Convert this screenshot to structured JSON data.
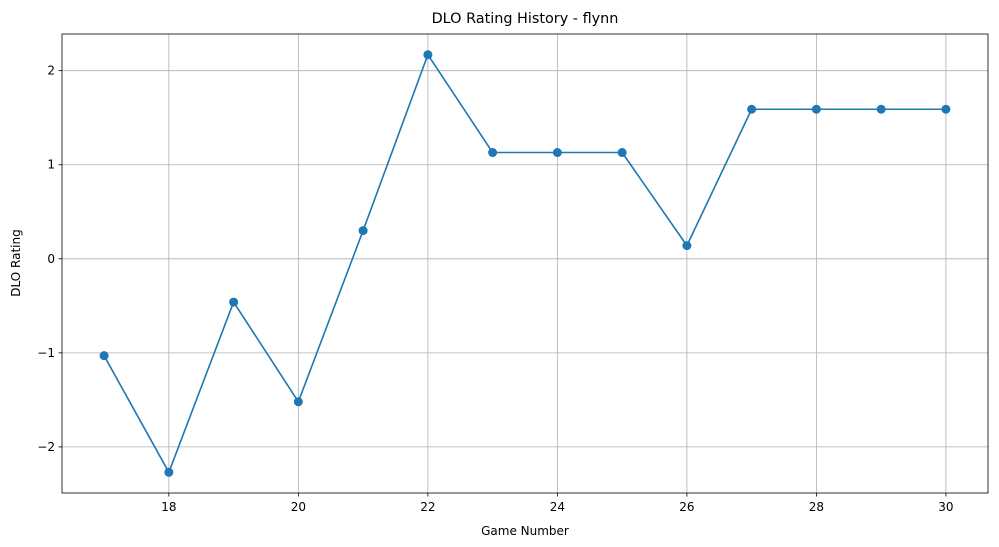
{
  "chart_data": {
    "type": "line",
    "title": "DLO Rating History - flynn",
    "xlabel": "Game Number",
    "ylabel": "DLO Rating",
    "x": [
      17,
      18,
      19,
      20,
      21,
      22,
      23,
      24,
      25,
      26,
      27,
      28,
      29,
      30
    ],
    "series": [
      {
        "values": [
          -1.03,
          -2.27,
          -0.46,
          -1.52,
          0.3,
          2.17,
          1.13,
          1.13,
          1.13,
          0.14,
          1.59,
          1.59,
          1.59,
          1.59
        ],
        "color": "#1f77b4",
        "marker": "circle"
      }
    ],
    "xlim": [
      16.35,
      30.65
    ],
    "ylim": [
      -2.49,
      2.39
    ],
    "xticks": [
      18,
      20,
      22,
      24,
      26,
      28,
      30
    ],
    "xtick_labels": [
      "18",
      "20",
      "22",
      "24",
      "26",
      "28",
      "30"
    ],
    "yticks": [
      -2,
      -1,
      0,
      1,
      2
    ],
    "ytick_labels": [
      "−2",
      "−1",
      "0",
      "1",
      "2"
    ],
    "grid": true,
    "legend": "none"
  }
}
